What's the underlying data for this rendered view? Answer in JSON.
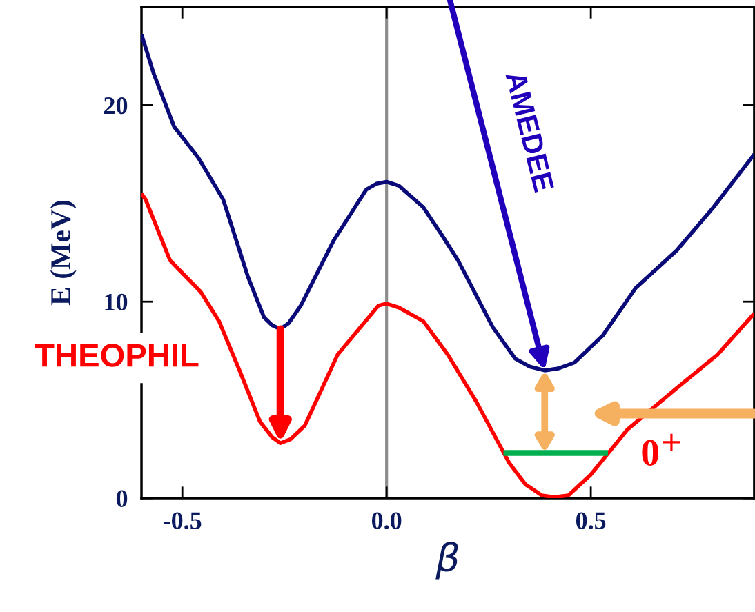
{
  "chart_data": {
    "type": "line",
    "xlabel": "β",
    "ylabel": "E (MeV)",
    "xlim": [
      -0.6,
      0.9
    ],
    "ylim": [
      0,
      25
    ],
    "xticks": [
      {
        "value": -0.5,
        "label": "-0.5"
      },
      {
        "value": 0,
        "label": "0.0"
      },
      {
        "value": 0.5,
        "label": "0.5"
      }
    ],
    "yticks": [
      0,
      10,
      20
    ],
    "grid": false,
    "marker": "none",
    "line_style": "solid",
    "series": [
      {
        "color": "#0a0a78",
        "x": [
          -0.6,
          -0.57,
          -0.52,
          -0.46,
          -0.4,
          -0.34,
          -0.3,
          -0.28,
          -0.26,
          -0.24,
          -0.21,
          -0.13,
          -0.05,
          -0.025,
          0.0,
          0.03,
          0.09,
          0.135,
          0.175,
          0.26,
          0.315,
          0.35,
          0.387,
          0.42,
          0.46,
          0.53,
          0.61,
          0.71,
          0.8,
          0.9
        ],
        "values": [
          23.6,
          21.6,
          18.9,
          17.3,
          15.2,
          11.3,
          9.2,
          8.8,
          8.6,
          8.9,
          9.8,
          13.1,
          15.7,
          16.0,
          16.1,
          15.9,
          14.8,
          13.4,
          12.1,
          8.7,
          7.1,
          6.7,
          6.5,
          6.6,
          6.9,
          8.3,
          10.7,
          12.6,
          14.8,
          17.5
        ]
      },
      {
        "color": "#ff0000",
        "x": [
          -0.6,
          -0.59,
          -0.53,
          -0.455,
          -0.41,
          -0.36,
          -0.31,
          -0.28,
          -0.26,
          -0.235,
          -0.2,
          -0.12,
          -0.04,
          -0.02,
          0.0,
          0.03,
          0.09,
          0.15,
          0.22,
          0.3,
          0.34,
          0.38,
          0.41,
          0.445,
          0.5,
          0.59,
          0.71,
          0.81,
          0.9
        ],
        "values": [
          15.5,
          15.2,
          12.1,
          10.5,
          9.0,
          6.5,
          3.9,
          3.1,
          2.8,
          3.0,
          3.7,
          7.3,
          9.3,
          9.8,
          9.9,
          9.7,
          9.0,
          7.3,
          4.9,
          1.8,
          0.7,
          0.14,
          0.05,
          0.14,
          1.2,
          3.5,
          5.6,
          7.3,
          9.4
        ]
      },
      {
        "color": "#00b050",
        "x": [
          0.286,
          0.542
        ],
        "values": [
          2.3,
          2.3
        ]
      }
    ],
    "ref_lines": [
      {
        "axis": "x",
        "value": 0,
        "color": "#8c8c8c"
      }
    ],
    "annotations": [
      "AMEDEE",
      "THEOPHIL",
      "0$^{+}$"
    ]
  }
}
